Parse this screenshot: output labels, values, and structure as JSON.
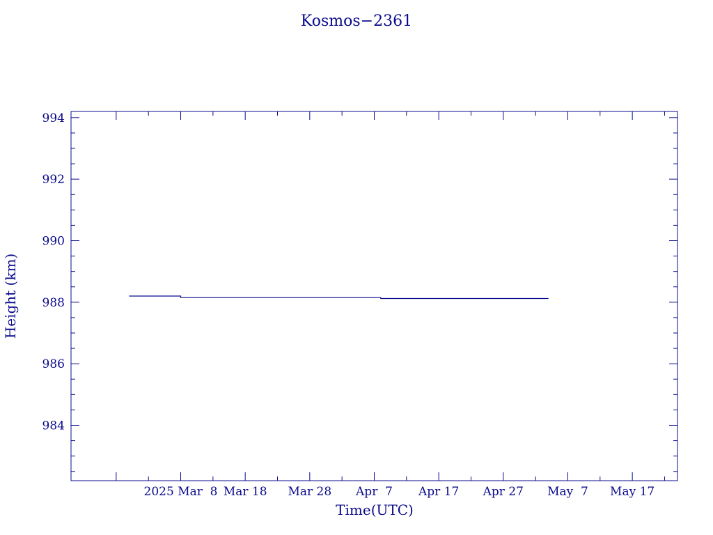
{
  "colors": {
    "ink": "#0a0a8c",
    "background": "#ffffff"
  },
  "chart_data": {
    "type": "line",
    "title": "Kosmos−2361",
    "xlabel": "Time(UTC)",
    "ylabel": "Height (km)",
    "xlim": [
      "2025-02-19",
      "2025-05-24"
    ],
    "ylim": [
      982.2,
      994.2
    ],
    "x_ticks": [
      {
        "date": "2025-03-08",
        "label": "2025 Mar  8"
      },
      {
        "date": "2025-03-18",
        "label": "Mar 18"
      },
      {
        "date": "2025-03-28",
        "label": "Mar 28"
      },
      {
        "date": "2025-04-07",
        "label": "Apr  7"
      },
      {
        "date": "2025-04-17",
        "label": "Apr 17"
      },
      {
        "date": "2025-04-27",
        "label": "Apr 27"
      },
      {
        "date": "2025-05-07",
        "label": "May  7"
      },
      {
        "date": "2025-05-17",
        "label": "May 17"
      }
    ],
    "y_ticks": [
      984,
      986,
      988,
      990,
      992,
      994
    ],
    "grid": false,
    "series": [
      {
        "x": [
          "2025-02-28",
          "2025-03-08",
          "2025-03-08",
          "2025-04-08",
          "2025-04-08",
          "2025-05-04"
        ],
        "y": [
          988.2,
          988.2,
          988.15,
          988.15,
          988.12,
          988.12
        ]
      }
    ]
  }
}
